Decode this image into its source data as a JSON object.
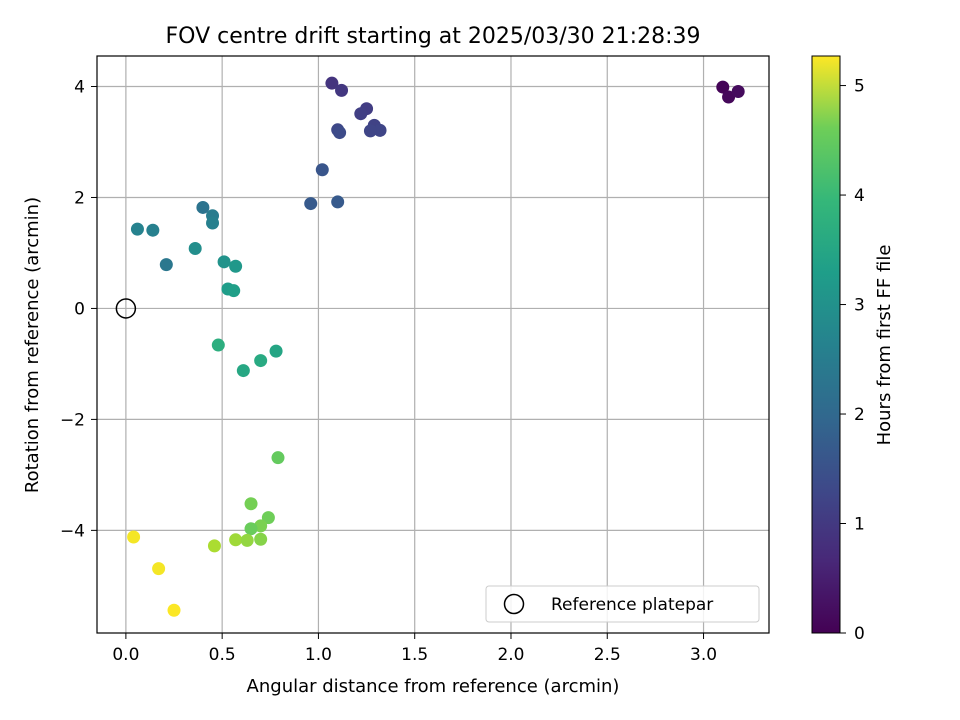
{
  "chart_data": {
    "type": "scatter",
    "title": "FOV centre drift starting at 2025/03/30 21:28:39",
    "xlabel": "Angular distance from reference (arcmin)",
    "ylabel": "Rotation from reference (arcmin)",
    "xlim": [
      -0.15,
      3.34
    ],
    "ylim": [
      -5.85,
      4.55
    ],
    "x_ticks": [
      "0.0",
      "0.5",
      "1.0",
      "1.5",
      "2.0",
      "2.5",
      "3.0"
    ],
    "x_tick_values": [
      0.0,
      0.5,
      1.0,
      1.5,
      2.0,
      2.5,
      3.0
    ],
    "y_ticks": [
      "−4",
      "−2",
      "0",
      "2",
      "4"
    ],
    "y_tick_values": [
      -4,
      -2,
      0,
      2,
      4
    ],
    "grid": true,
    "legend": {
      "position": "bottom-right",
      "entries": [
        "Reference platepar"
      ]
    },
    "reference_point": {
      "x": 0.0,
      "y": 0.0
    },
    "colorbar": {
      "label": "Hours from first FF file",
      "range": [
        0,
        5.27
      ],
      "ticks": [
        "0",
        "1",
        "2",
        "3",
        "4",
        "5"
      ],
      "tick_values": [
        0,
        1,
        2,
        3,
        4,
        5
      ],
      "colormap": "viridis"
    },
    "points": [
      {
        "x": 3.1,
        "y": 3.99,
        "c": 0.05
      },
      {
        "x": 3.13,
        "y": 3.81,
        "c": 0.1
      },
      {
        "x": 3.18,
        "y": 3.91,
        "c": 0.15
      },
      {
        "x": 1.07,
        "y": 4.06,
        "c": 0.8
      },
      {
        "x": 1.12,
        "y": 3.93,
        "c": 0.85
      },
      {
        "x": 1.25,
        "y": 3.6,
        "c": 0.95
      },
      {
        "x": 1.22,
        "y": 3.51,
        "c": 1.0
      },
      {
        "x": 1.29,
        "y": 3.3,
        "c": 1.05
      },
      {
        "x": 1.32,
        "y": 3.21,
        "c": 1.1
      },
      {
        "x": 1.27,
        "y": 3.2,
        "c": 1.1
      },
      {
        "x": 1.1,
        "y": 3.22,
        "c": 1.15
      },
      {
        "x": 1.11,
        "y": 3.17,
        "c": 1.2
      },
      {
        "x": 1.02,
        "y": 2.5,
        "c": 1.4
      },
      {
        "x": 0.96,
        "y": 1.89,
        "c": 1.5
      },
      {
        "x": 1.1,
        "y": 1.92,
        "c": 1.5
      },
      {
        "x": 0.4,
        "y": 1.82,
        "c": 2.0
      },
      {
        "x": 0.45,
        "y": 1.67,
        "c": 2.2
      },
      {
        "x": 0.45,
        "y": 1.54,
        "c": 2.3
      },
      {
        "x": 0.06,
        "y": 1.43,
        "c": 2.35
      },
      {
        "x": 0.14,
        "y": 1.41,
        "c": 2.3
      },
      {
        "x": 0.21,
        "y": 0.79,
        "c": 2.1
      },
      {
        "x": 0.36,
        "y": 1.08,
        "c": 2.6
      },
      {
        "x": 0.51,
        "y": 0.84,
        "c": 2.7
      },
      {
        "x": 0.57,
        "y": 0.76,
        "c": 2.8
      },
      {
        "x": 0.53,
        "y": 0.35,
        "c": 2.9
      },
      {
        "x": 0.56,
        "y": 0.32,
        "c": 2.95
      },
      {
        "x": 0.48,
        "y": -0.66,
        "c": 3.3
      },
      {
        "x": 0.7,
        "y": -0.94,
        "c": 3.2
      },
      {
        "x": 0.78,
        "y": -0.77,
        "c": 3.1
      },
      {
        "x": 0.61,
        "y": -1.12,
        "c": 3.15
      },
      {
        "x": 0.79,
        "y": -2.69,
        "c": 4.0
      },
      {
        "x": 0.65,
        "y": -3.52,
        "c": 4.15
      },
      {
        "x": 0.74,
        "y": -3.77,
        "c": 4.1
      },
      {
        "x": 0.7,
        "y": -3.92,
        "c": 4.2
      },
      {
        "x": 0.65,
        "y": -3.97,
        "c": 4.05
      },
      {
        "x": 0.57,
        "y": -4.17,
        "c": 4.5
      },
      {
        "x": 0.63,
        "y": -4.18,
        "c": 4.4
      },
      {
        "x": 0.7,
        "y": -4.16,
        "c": 4.3
      },
      {
        "x": 0.46,
        "y": -4.28,
        "c": 4.6
      },
      {
        "x": 0.04,
        "y": -4.12,
        "c": 5.2
      },
      {
        "x": 0.17,
        "y": -4.69,
        "c": 5.2
      },
      {
        "x": 0.25,
        "y": -5.44,
        "c": 5.25
      }
    ]
  }
}
